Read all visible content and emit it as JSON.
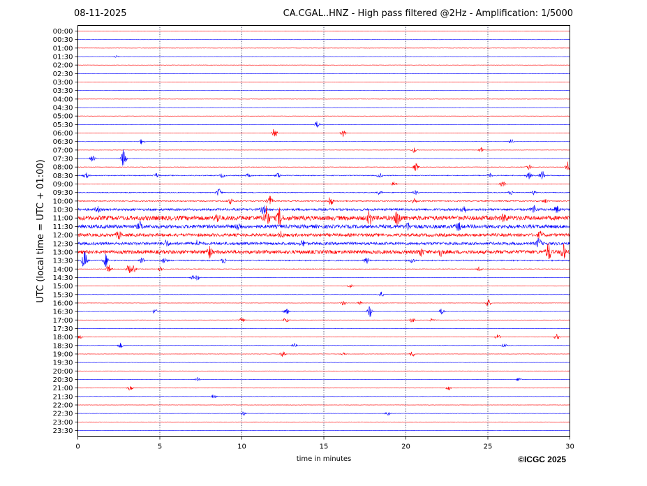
{
  "header": {
    "date": "08-11-2025",
    "title": "CA.CGAL..HNZ - High pass filtered @2Hz - Amplification: 1/5000"
  },
  "copyright": "©ICGC 2025",
  "chart_data": {
    "type": "line",
    "title": "CA.CGAL..HNZ - High pass filtered @2Hz - Amplification: 1/5000",
    "date": "08-11-2025",
    "xlabel": "time in minutes",
    "ylabel": "UTC (local time = UTC + 01:00)",
    "xlim": [
      0,
      30
    ],
    "x_ticks": [
      0,
      5,
      10,
      15,
      20,
      25,
      30
    ],
    "vertical_grid_at": [
      5,
      10,
      15,
      20,
      25
    ],
    "grid": "dotted vertical lines",
    "trace_colors": [
      "#ff0000",
      "#0000ff"
    ],
    "trace_color_rule": "alternating red/blue per row",
    "rows": [
      {
        "label": "00:00",
        "color": "#ff0000",
        "noise": 0.2,
        "events": []
      },
      {
        "label": "00:30",
        "color": "#0000ff",
        "noise": 0.2,
        "events": []
      },
      {
        "label": "01:00",
        "color": "#ff0000",
        "noise": 0.2,
        "events": []
      },
      {
        "label": "01:30",
        "color": "#0000ff",
        "noise": 0.2,
        "events": [
          {
            "t": 2.3,
            "amp": 1.5
          }
        ]
      },
      {
        "label": "02:00",
        "color": "#ff0000",
        "noise": 0.2,
        "events": []
      },
      {
        "label": "02:30",
        "color": "#0000ff",
        "noise": 0.2,
        "events": []
      },
      {
        "label": "03:00",
        "color": "#ff0000",
        "noise": 0.2,
        "events": []
      },
      {
        "label": "03:30",
        "color": "#0000ff",
        "noise": 0.2,
        "events": []
      },
      {
        "label": "04:00",
        "color": "#ff0000",
        "noise": 0.2,
        "events": []
      },
      {
        "label": "04:30",
        "color": "#0000ff",
        "noise": 0.2,
        "events": []
      },
      {
        "label": "05:00",
        "color": "#ff0000",
        "noise": 0.2,
        "events": []
      },
      {
        "label": "05:30",
        "color": "#0000ff",
        "noise": 0.2,
        "events": [
          {
            "t": 14.6,
            "amp": 5
          }
        ]
      },
      {
        "label": "06:00",
        "color": "#ff0000",
        "noise": 0.2,
        "events": [
          {
            "t": 12.0,
            "amp": 8
          },
          {
            "t": 16.2,
            "amp": 6
          }
        ]
      },
      {
        "label": "06:30",
        "color": "#0000ff",
        "noise": 0.2,
        "events": [
          {
            "t": 3.9,
            "amp": 4
          },
          {
            "t": 26.4,
            "amp": 4
          }
        ]
      },
      {
        "label": "07:00",
        "color": "#ff0000",
        "noise": 0.2,
        "events": [
          {
            "t": 20.5,
            "amp": 4
          },
          {
            "t": 24.6,
            "amp": 4
          }
        ]
      },
      {
        "label": "07:30",
        "color": "#0000ff",
        "noise": 0.2,
        "events": [
          {
            "t": 0.9,
            "amp": 5
          },
          {
            "t": 2.8,
            "amp": 14
          }
        ]
      },
      {
        "label": "08:00",
        "color": "#ff0000",
        "noise": 0.3,
        "events": [
          {
            "t": 20.6,
            "amp": 6
          },
          {
            "t": 27.5,
            "amp": 4
          },
          {
            "t": 29.9,
            "amp": 8
          }
        ]
      },
      {
        "label": "08:30",
        "color": "#0000ff",
        "noise": 0.6,
        "events": [
          {
            "t": 0.5,
            "amp": 4
          },
          {
            "t": 4.8,
            "amp": 3
          },
          {
            "t": 8.8,
            "amp": 3
          },
          {
            "t": 10.4,
            "amp": 3
          },
          {
            "t": 12.2,
            "amp": 4
          },
          {
            "t": 18.4,
            "amp": 3
          },
          {
            "t": 25.1,
            "amp": 3
          },
          {
            "t": 27.5,
            "amp": 5
          },
          {
            "t": 28.3,
            "amp": 7
          }
        ]
      },
      {
        "label": "09:00",
        "color": "#ff0000",
        "noise": 0.3,
        "events": [
          {
            "t": 19.3,
            "amp": 4
          },
          {
            "t": 25.9,
            "amp": 5
          }
        ]
      },
      {
        "label": "09:30",
        "color": "#0000ff",
        "noise": 0.5,
        "events": [
          {
            "t": 8.6,
            "amp": 6
          },
          {
            "t": 18.4,
            "amp": 3
          },
          {
            "t": 20.6,
            "amp": 3
          },
          {
            "t": 26.4,
            "amp": 3
          },
          {
            "t": 27.8,
            "amp": 3
          }
        ]
      },
      {
        "label": "10:00",
        "color": "#ff0000",
        "noise": 0.7,
        "events": [
          {
            "t": 9.3,
            "amp": 4
          },
          {
            "t": 11.7,
            "amp": 8
          },
          {
            "t": 15.4,
            "amp": 7
          },
          {
            "t": 20.5,
            "amp": 3
          },
          {
            "t": 28.5,
            "amp": 3
          }
        ]
      },
      {
        "label": "10:30",
        "color": "#0000ff",
        "noise": 1.6,
        "events": [
          {
            "t": 1.2,
            "amp": 4
          },
          {
            "t": 11.3,
            "amp": 6
          },
          {
            "t": 23.5,
            "amp": 6
          },
          {
            "t": 27.8,
            "amp": 6
          },
          {
            "t": 29.2,
            "amp": 5
          }
        ]
      },
      {
        "label": "11:00",
        "color": "#ff0000",
        "noise": 3.2,
        "events": [
          {
            "t": 8.5,
            "amp": 5
          },
          {
            "t": 11.5,
            "amp": 16
          },
          {
            "t": 12.3,
            "amp": 12
          },
          {
            "t": 17.8,
            "amp": 9
          },
          {
            "t": 19.5,
            "amp": 13
          },
          {
            "t": 26.0,
            "amp": 5
          }
        ]
      },
      {
        "label": "11:30",
        "color": "#0000ff",
        "noise": 2.6,
        "events": [
          {
            "t": 3.8,
            "amp": 5
          },
          {
            "t": 9.8,
            "amp": 4
          },
          {
            "t": 20.1,
            "amp": 5
          },
          {
            "t": 23.2,
            "amp": 5
          }
        ]
      },
      {
        "label": "12:00",
        "color": "#ff0000",
        "noise": 2.2,
        "events": [
          {
            "t": 2.5,
            "amp": 5
          },
          {
            "t": 12.4,
            "amp": 4
          },
          {
            "t": 28.2,
            "amp": 5
          }
        ]
      },
      {
        "label": "12:30",
        "color": "#0000ff",
        "noise": 2.0,
        "events": [
          {
            "t": 5.4,
            "amp": 4
          },
          {
            "t": 7.3,
            "amp": 4
          },
          {
            "t": 13.7,
            "amp": 4
          },
          {
            "t": 28.1,
            "amp": 7
          }
        ]
      },
      {
        "label": "13:00",
        "color": "#ff0000",
        "noise": 2.6,
        "events": [
          {
            "t": 8.0,
            "amp": 8
          },
          {
            "t": 20.9,
            "amp": 5
          },
          {
            "t": 22.1,
            "amp": 5
          },
          {
            "t": 28.7,
            "amp": 12
          },
          {
            "t": 29.6,
            "amp": 10
          }
        ]
      },
      {
        "label": "13:30",
        "color": "#0000ff",
        "noise": 0.8,
        "events": [
          {
            "t": 0.4,
            "amp": 14
          },
          {
            "t": 1.7,
            "amp": 9
          },
          {
            "t": 3.9,
            "amp": 5
          },
          {
            "t": 5.3,
            "amp": 4
          },
          {
            "t": 8.9,
            "amp": 4
          },
          {
            "t": 17.6,
            "amp": 5
          },
          {
            "t": 20.4,
            "amp": 3
          }
        ]
      },
      {
        "label": "14:00",
        "color": "#ff0000",
        "noise": 0.4,
        "events": [
          {
            "t": 1.9,
            "amp": 6
          },
          {
            "t": 3.1,
            "amp": 6
          },
          {
            "t": 3.4,
            "amp": 5
          },
          {
            "t": 5.0,
            "amp": 3
          },
          {
            "t": 24.5,
            "amp": 4
          }
        ]
      },
      {
        "label": "14:30",
        "color": "#0000ff",
        "noise": 0.2,
        "events": [
          {
            "t": 7.0,
            "amp": 3
          },
          {
            "t": 7.3,
            "amp": 4
          }
        ]
      },
      {
        "label": "15:00",
        "color": "#ff0000",
        "noise": 0.2,
        "events": [
          {
            "t": 16.6,
            "amp": 3
          }
        ]
      },
      {
        "label": "15:30",
        "color": "#0000ff",
        "noise": 0.2,
        "events": [
          {
            "t": 18.5,
            "amp": 4
          }
        ]
      },
      {
        "label": "16:00",
        "color": "#ff0000",
        "noise": 0.2,
        "events": [
          {
            "t": 16.2,
            "amp": 4
          },
          {
            "t": 17.2,
            "amp": 3
          },
          {
            "t": 25.0,
            "amp": 6
          }
        ]
      },
      {
        "label": "16:30",
        "color": "#0000ff",
        "noise": 0.2,
        "events": [
          {
            "t": 4.7,
            "amp": 4
          },
          {
            "t": 12.7,
            "amp": 5
          },
          {
            "t": 17.8,
            "amp": 8
          },
          {
            "t": 22.2,
            "amp": 5
          }
        ]
      },
      {
        "label": "17:00",
        "color": "#ff0000",
        "noise": 0.2,
        "events": [
          {
            "t": 10.0,
            "amp": 4
          },
          {
            "t": 12.7,
            "amp": 4
          },
          {
            "t": 20.4,
            "amp": 4
          },
          {
            "t": 21.6,
            "amp": 3
          }
        ]
      },
      {
        "label": "17:30",
        "color": "#0000ff",
        "noise": 0.2,
        "events": []
      },
      {
        "label": "18:00",
        "color": "#ff0000",
        "noise": 0.2,
        "events": [
          {
            "t": 0.1,
            "amp": 3
          },
          {
            "t": 25.6,
            "amp": 4
          },
          {
            "t": 29.2,
            "amp": 4
          }
        ]
      },
      {
        "label": "18:30",
        "color": "#0000ff",
        "noise": 0.2,
        "events": [
          {
            "t": 2.6,
            "amp": 4
          },
          {
            "t": 13.2,
            "amp": 3
          },
          {
            "t": 26.0,
            "amp": 3
          }
        ]
      },
      {
        "label": "19:00",
        "color": "#ff0000",
        "noise": 0.2,
        "events": [
          {
            "t": 12.5,
            "amp": 4
          },
          {
            "t": 16.2,
            "amp": 2
          },
          {
            "t": 20.4,
            "amp": 4
          }
        ]
      },
      {
        "label": "19:30",
        "color": "#0000ff",
        "noise": 0.2,
        "events": []
      },
      {
        "label": "20:00",
        "color": "#ff0000",
        "noise": 0.2,
        "events": []
      },
      {
        "label": "20:30",
        "color": "#0000ff",
        "noise": 0.2,
        "events": [
          {
            "t": 7.3,
            "amp": 3
          },
          {
            "t": 26.9,
            "amp": 3
          }
        ]
      },
      {
        "label": "21:00",
        "color": "#ff0000",
        "noise": 0.2,
        "events": [
          {
            "t": 3.2,
            "amp": 4
          },
          {
            "t": 22.6,
            "amp": 3
          }
        ]
      },
      {
        "label": "21:30",
        "color": "#0000ff",
        "noise": 0.2,
        "events": [
          {
            "t": 8.3,
            "amp": 3
          }
        ]
      },
      {
        "label": "22:00",
        "color": "#ff0000",
        "noise": 0.2,
        "events": []
      },
      {
        "label": "22:30",
        "color": "#0000ff",
        "noise": 0.2,
        "events": [
          {
            "t": 10.1,
            "amp": 3
          },
          {
            "t": 18.9,
            "amp": 3
          }
        ]
      },
      {
        "label": "23:00",
        "color": "#ff0000",
        "noise": 0.2,
        "events": []
      },
      {
        "label": "23:30",
        "color": "#0000ff",
        "noise": 0.2,
        "events": []
      }
    ]
  }
}
